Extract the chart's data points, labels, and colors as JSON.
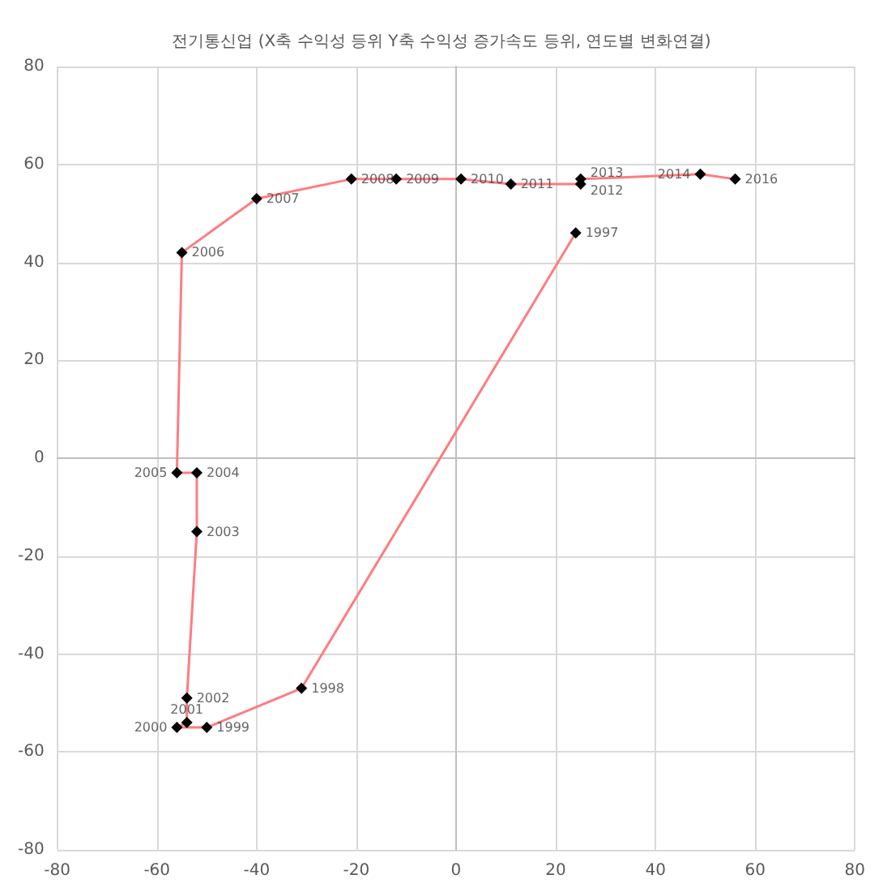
{
  "chart_data": {
    "type": "line",
    "title": "전기통신업 (X축 수익성 등위 Y축 수익성 증가속도 등위, 연도별 변화연결)",
    "series": [
      {
        "color": "#ff7c80",
        "x": [
          24,
          -31,
          -50,
          -56,
          -54,
          -54,
          -52,
          -52,
          -56,
          -55,
          -40,
          -21,
          -12,
          1,
          11,
          25,
          25,
          49,
          56
        ],
        "values": [
          46,
          -47,
          -55,
          -55,
          -54,
          -49,
          -15,
          -3,
          -3,
          42,
          53,
          57,
          57,
          57,
          56,
          56,
          57,
          58,
          57
        ]
      }
    ],
    "annotations": [
      {
        "text": "1997",
        "x": 24,
        "y": 46
      },
      {
        "text": "1998",
        "x": -31,
        "y": -47
      },
      {
        "text": "1999",
        "x": -50,
        "y": -55
      },
      {
        "text": "2000",
        "x": -56,
        "y": -55
      },
      {
        "text": "2001",
        "x": -54,
        "y": -54
      },
      {
        "text": "2002",
        "x": -54,
        "y": -49
      },
      {
        "text": "2003",
        "x": -52,
        "y": -15
      },
      {
        "text": "2004",
        "x": -52,
        "y": -3
      },
      {
        "text": "2005",
        "x": -56,
        "y": -3
      },
      {
        "text": "2006",
        "x": -55,
        "y": 42
      },
      {
        "text": "2007",
        "x": -40,
        "y": 53
      },
      {
        "text": "2008",
        "x": -21,
        "y": 57
      },
      {
        "text": "2009",
        "x": -12,
        "y": 57
      },
      {
        "text": "2010",
        "x": 1,
        "y": 57
      },
      {
        "text": "2011",
        "x": 11,
        "y": 56
      },
      {
        "text": "2012",
        "x": 25,
        "y": 56
      },
      {
        "text": "2013",
        "x": 25,
        "y": 57
      },
      {
        "text": "2014",
        "x": 49,
        "y": 58
      },
      {
        "text": "2016",
        "x": 56,
        "y": 57
      }
    ],
    "xlim": [
      -80,
      80
    ],
    "xticks": [
      -80,
      -60,
      -40,
      -20,
      0,
      20,
      40,
      60,
      80
    ],
    "ylim": [
      -80,
      80
    ],
    "yticks": [
      -80,
      -60,
      -40,
      -20,
      0,
      20,
      40,
      60,
      80
    ],
    "grid": true,
    "marker": "diamond",
    "line_style": "solid"
  }
}
